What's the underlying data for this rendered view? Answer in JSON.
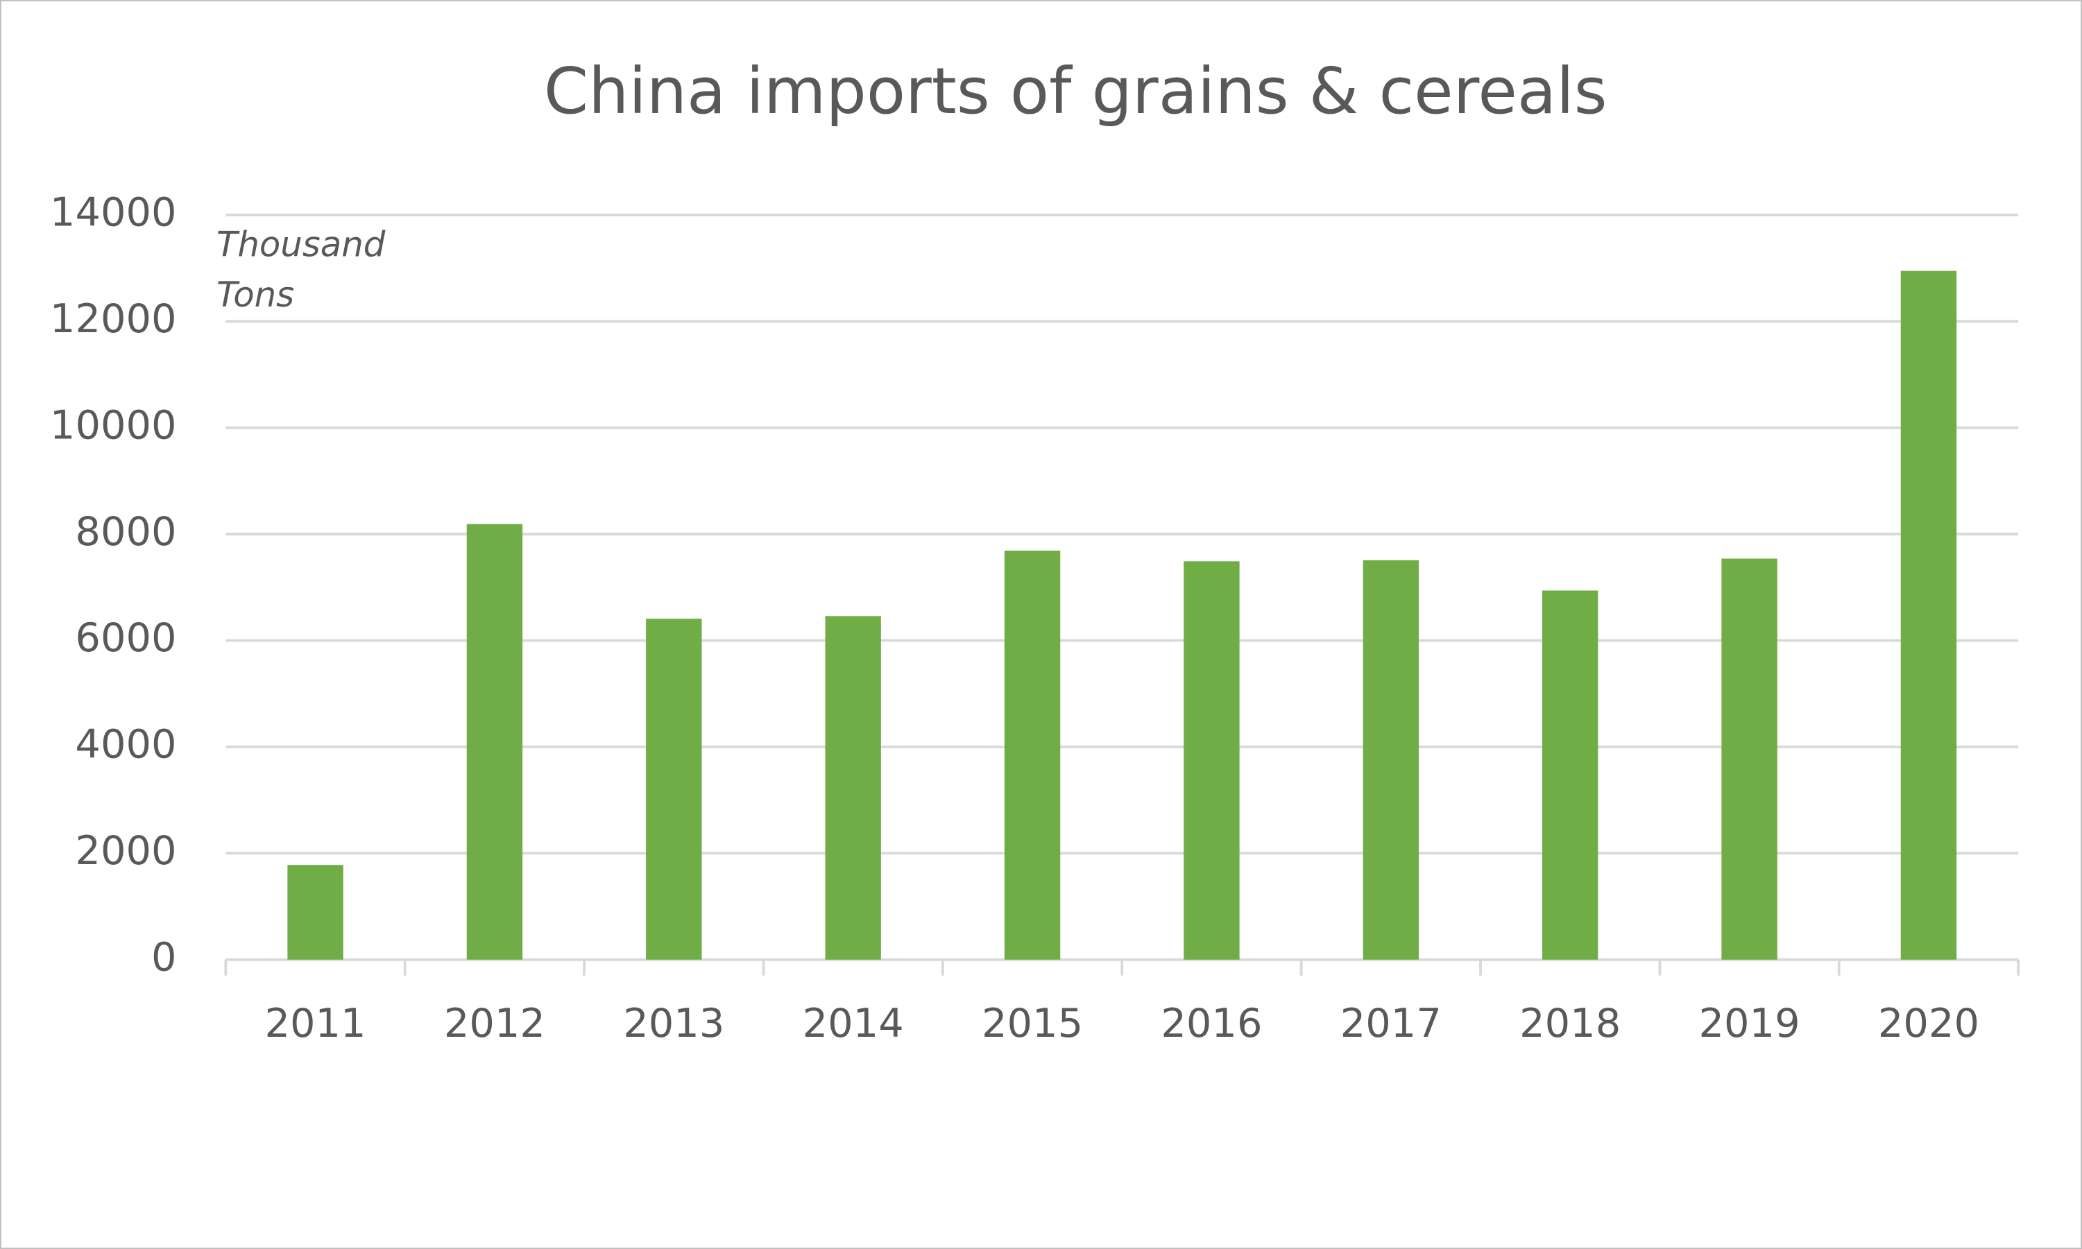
{
  "chart_data": {
    "type": "bar",
    "title": "China imports of grains & cereals",
    "annotation": [
      "Thousand",
      "Tons"
    ],
    "categories": [
      "2011",
      "2012",
      "2013",
      "2014",
      "2015",
      "2016",
      "2017",
      "2018",
      "2019",
      "2020"
    ],
    "values": [
      1780,
      8190,
      6410,
      6460,
      7690,
      7490,
      7510,
      6940,
      7540,
      12950
    ],
    "color": "#70ad47",
    "ylim": [
      0,
      14000
    ],
    "yticks": [
      0,
      2000,
      4000,
      6000,
      8000,
      10000,
      12000,
      14000
    ],
    "grid": true
  }
}
